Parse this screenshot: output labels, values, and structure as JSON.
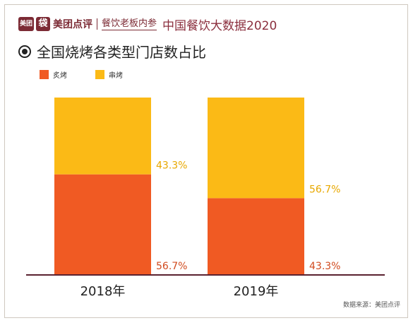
{
  "header": {
    "logo_badge": "美团",
    "logo_mark": "袋",
    "brand": "美团点评",
    "brand2": "餐饮老板内参",
    "report_title": "中国餐饮大数据2020"
  },
  "source": "数据来源：美团点评",
  "colors": {
    "炙烤": "#f05a23",
    "串烤": "#fbba16",
    "axis": "#5a2230",
    "label_red": "#d14a1e",
    "label_yellow": "#e8a800"
  },
  "chart_data": {
    "type": "bar",
    "stacked": true,
    "title": "全国烧烤各类型门店数占比",
    "categories": [
      "2018年",
      "2019年"
    ],
    "series": [
      {
        "name": "炙烤",
        "values": [
          56.7,
          43.3
        ],
        "labels": [
          "56.7%",
          "43.3%"
        ]
      },
      {
        "name": "串烤",
        "values": [
          43.3,
          56.7
        ],
        "labels": [
          "43.3%",
          "56.7%"
        ]
      }
    ],
    "ylim": [
      0,
      100
    ],
    "grid": false,
    "legend": "top-left"
  }
}
